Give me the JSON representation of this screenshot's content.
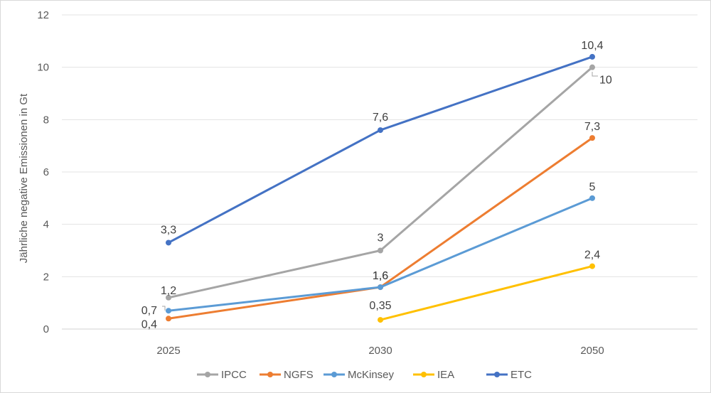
{
  "chart_data": {
    "type": "line",
    "title": "",
    "xlabel": "",
    "ylabel": "Jährliche negative Emissionen in Gt",
    "categories": [
      "2025",
      "2030",
      "2050"
    ],
    "ylim": [
      0,
      12
    ],
    "yticks": [
      "0",
      "2",
      "4",
      "6",
      "8",
      "10",
      "12"
    ],
    "grid": true,
    "legend_position": "bottom",
    "series": [
      {
        "name": "IPCC",
        "color": "#a5a5a5",
        "values": [
          1.2,
          3,
          10
        ],
        "labels": [
          "1,2",
          "3",
          "10"
        ]
      },
      {
        "name": "NGFS",
        "color": "#ed7d31",
        "values": [
          0.4,
          1.6,
          7.3
        ],
        "labels": [
          "0,4",
          "1,6",
          "7,3"
        ]
      },
      {
        "name": "McKinsey",
        "color": "#5b9bd5",
        "values": [
          0.7,
          1.6,
          5
        ],
        "labels": [
          "0,7",
          "1,6",
          "5"
        ]
      },
      {
        "name": "IEA",
        "color": "#ffc000",
        "values": [
          null,
          0.35,
          2.4
        ],
        "labels": [
          "",
          "0,35",
          "2,4"
        ]
      },
      {
        "name": "ETC",
        "color": "#4472c4",
        "values": [
          3.3,
          7.6,
          10.4
        ],
        "labels": [
          "3,3",
          "7,6",
          "10,4"
        ]
      }
    ]
  }
}
